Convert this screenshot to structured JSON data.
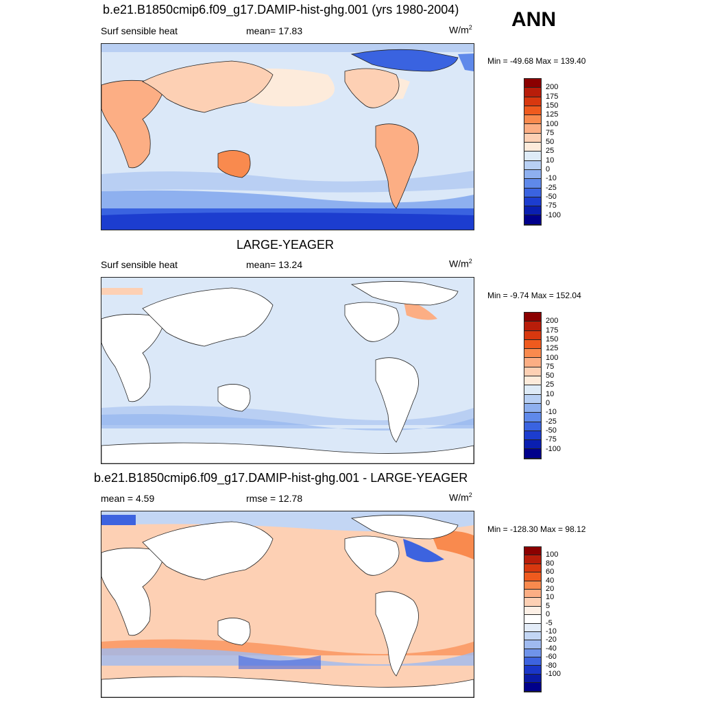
{
  "season": "ANN",
  "panels": [
    {
      "title": "b.e21.B1850cmip6.f09_g17.DAMIP-hist-ghg.001 (yrs 1980-2004)",
      "left_label": "Surf sensible heat",
      "center_label": "mean=  17.83",
      "units_base": "W/m",
      "units_exp": "2",
      "minmax": "Min = -49.68 Max = 139.40",
      "colorbar": {
        "colors": [
          "#8b0000",
          "#b81d0a",
          "#d8380f",
          "#ef5a1e",
          "#f98a4e",
          "#fcae84",
          "#fdd0b4",
          "#fdebdb",
          "#deebf7",
          "#b8d0f4",
          "#8eb0ef",
          "#5f89ea",
          "#3a63e0",
          "#1c3dcf",
          "#0a1fb0",
          "#00008b"
        ],
        "labels": [
          "200",
          "175",
          "150",
          "125",
          "100",
          "75",
          "50",
          "25",
          "10",
          "0",
          "-10",
          "-25",
          "-50",
          "-75",
          "-100"
        ]
      }
    },
    {
      "title": "LARGE-YEAGER",
      "left_label": "Surf sensible heat",
      "center_label": "mean=  13.24",
      "units_base": "W/m",
      "units_exp": "2",
      "minmax": "Min =  -9.74 Max = 152.04",
      "colorbar": {
        "colors": [
          "#8b0000",
          "#b81d0a",
          "#d8380f",
          "#ef5a1e",
          "#f98a4e",
          "#fcae84",
          "#fdd0b4",
          "#fdebdb",
          "#deebf7",
          "#b8d0f4",
          "#8eb0ef",
          "#5f89ea",
          "#3a63e0",
          "#1c3dcf",
          "#0a1fb0",
          "#00008b"
        ],
        "labels": [
          "200",
          "175",
          "150",
          "125",
          "100",
          "75",
          "50",
          "25",
          "10",
          "0",
          "-10",
          "-25",
          "-50",
          "-75",
          "-100"
        ]
      }
    },
    {
      "title": "b.e21.B1850cmip6.f09_g17.DAMIP-hist-ghg.001 - LARGE-YEAGER",
      "left_label": "mean =   4.59",
      "center_label": "rmse =  12.78",
      "units_base": "W/m",
      "units_exp": "2",
      "minmax": "Min = -128.30 Max =  98.12",
      "colorbar": {
        "colors": [
          "#8b0000",
          "#b81d0a",
          "#d8380f",
          "#ef5a1e",
          "#f98a4e",
          "#fcae84",
          "#fdd0b4",
          "#fdf0e6",
          "#ffffff",
          "#e3ecf8",
          "#c3d6f4",
          "#9fbaf0",
          "#6f93ea",
          "#3d63df",
          "#1a36c8",
          "#0a1aa6",
          "#00008b"
        ],
        "labels": [
          "100",
          "80",
          "60",
          "40",
          "20",
          "10",
          "5",
          "0",
          "-5",
          "-10",
          "-20",
          "-40",
          "-60",
          "-80",
          "-100"
        ]
      }
    }
  ],
  "map_colors": {
    "ocean_pos": "#fbd9c2",
    "ocean_light": "#dbe8f8",
    "ocean_mid": "#b9cff3",
    "ocean_strong": "#5f89ea",
    "land_warm": "#f6b28e",
    "land_light": "#fbd9c2",
    "ice_blue": "#3a63e0",
    "coast": "#222222"
  }
}
